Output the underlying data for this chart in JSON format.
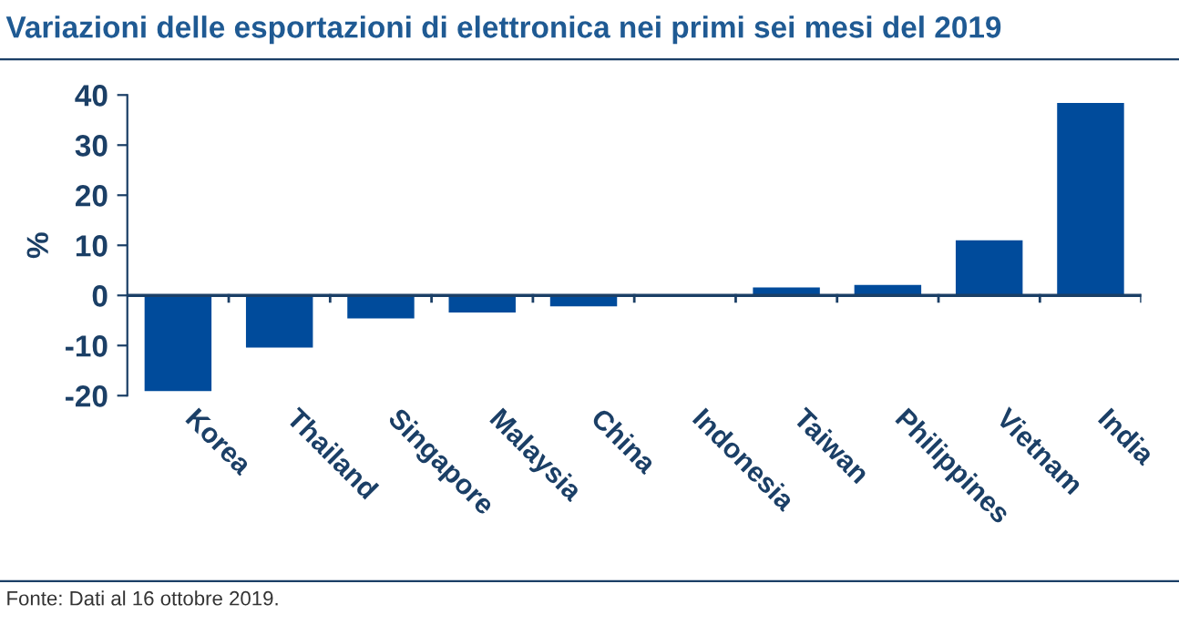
{
  "chart_data": {
    "type": "bar",
    "title": "Variazioni delle esportazioni di elettronica nei primi sei mesi del 2019",
    "ylabel": "%",
    "categories": [
      "Korea",
      "Thailand",
      "Singapore",
      "Malaysia",
      "China",
      "Indonesia",
      "Taiwan",
      "Philippines",
      "Vietnam",
      "India"
    ],
    "values": [
      -19.1,
      -10.4,
      -4.6,
      -3.4,
      -2.2,
      0,
      1.6,
      2.1,
      11.0,
      38.4
    ],
    "color": "#004b9b",
    "ylim": [
      -20,
      40
    ],
    "yticks": [
      -20,
      -10,
      0,
      10,
      20,
      30,
      40
    ],
    "grid": false,
    "ref_lines": [
      {
        "axis": "y",
        "value": 0
      }
    ],
    "legend": false,
    "annotations": [
      "Fonte: Dati al 16 ottobre 2019."
    ]
  }
}
